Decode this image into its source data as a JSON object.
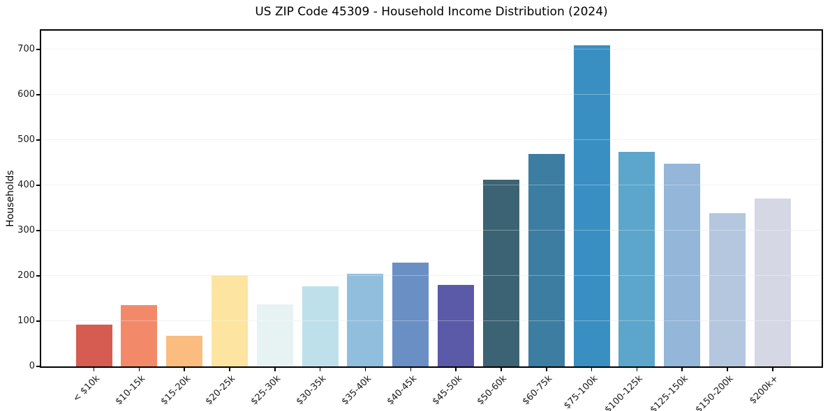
{
  "chart_data": {
    "type": "bar",
    "title": "US ZIP Code 45309 - Household Income Distribution (2024)",
    "ylabel": "Households",
    "xlabel": "",
    "categories": [
      "< $10k",
      "$10-15k",
      "$15-20k",
      "$20-25k",
      "$25-30k",
      "$30-35k",
      "$35-40k",
      "$40-45k",
      "$45-50k",
      "$50-60k",
      "$60-75k",
      "$75-100k",
      "$100-125k",
      "$125-150k",
      "$150-200k",
      "$200k+"
    ],
    "values": [
      92,
      135,
      68,
      202,
      137,
      177,
      205,
      230,
      180,
      412,
      470,
      709,
      474,
      448,
      338,
      371
    ],
    "bar_colors": [
      "#d65c52",
      "#f28a6a",
      "#fabd7f",
      "#fde4a0",
      "#e7f2f3",
      "#bee0eb",
      "#91bedd",
      "#6a8fc4",
      "#5a5aa8",
      "#3b6373",
      "#3c7da1",
      "#3a8fc2",
      "#5ca6cc",
      "#93b6d9",
      "#b5c7df",
      "#d5d7e5"
    ],
    "ylim": [
      0,
      742
    ],
    "yticks": [
      0,
      100,
      200,
      300,
      400,
      500,
      600,
      700
    ],
    "grid": "horizontal",
    "legend": "none",
    "colors": {
      "text": "#1a1a1a",
      "grid": "#ececec",
      "spine": "#000000",
      "background": "#ffffff"
    }
  }
}
